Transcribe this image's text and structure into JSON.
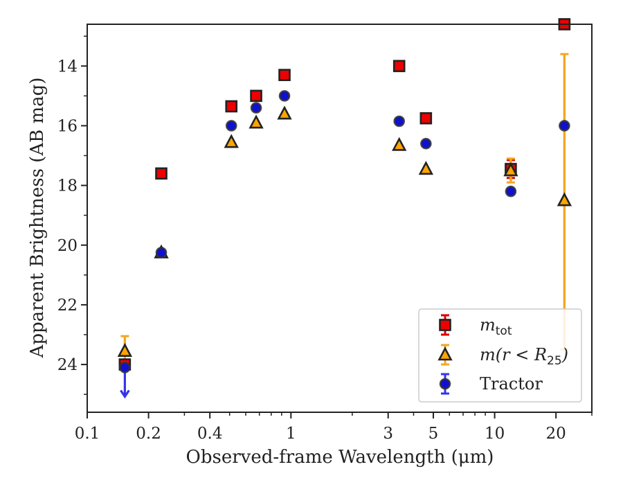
{
  "chart_data": {
    "type": "scatter",
    "title": "",
    "xlabel": "Observed-frame Wavelength (μm)",
    "ylabel": "Apparent Brightness (AB mag)",
    "xscale": "log",
    "xlim": [
      0.1,
      30
    ],
    "ylim": [
      25.6,
      12.6
    ],
    "y_inverted": true,
    "grid": false,
    "legend_placement": "lower-right",
    "x_ticks": [
      {
        "value": 0.1,
        "label": "0.1"
      },
      {
        "value": 0.2,
        "label": "0.2"
      },
      {
        "value": 0.4,
        "label": "0.4"
      },
      {
        "value": 1,
        "label": "1"
      },
      {
        "value": 3,
        "label": "3"
      },
      {
        "value": 5,
        "label": "5"
      },
      {
        "value": 10,
        "label": "10"
      },
      {
        "value": 20,
        "label": "20"
      }
    ],
    "y_ticks": [
      14,
      16,
      18,
      20,
      22,
      24
    ],
    "series": [
      {
        "name": "m_tot",
        "legend_base": "m",
        "legend_sub": "tot",
        "marker": "square",
        "color": "#ee0000",
        "errorbar_color": "#dd0000",
        "points": [
          {
            "x": 0.153,
            "y": 24.0
          },
          {
            "x": 0.231,
            "y": 17.6
          },
          {
            "x": 0.51,
            "y": 15.35
          },
          {
            "x": 0.675,
            "y": 15.0
          },
          {
            "x": 0.93,
            "y": 14.3
          },
          {
            "x": 3.4,
            "y": 14.0
          },
          {
            "x": 4.6,
            "y": 15.75
          },
          {
            "x": 12.0,
            "y": 17.45,
            "yerr": 0.3
          },
          {
            "x": 22.0,
            "y": 12.6
          }
        ]
      },
      {
        "name": "m(r < R25)",
        "legend_base": "m(r < R",
        "legend_sub": "25",
        "legend_tail": ")",
        "marker": "triangle",
        "color": "#ffa500",
        "errorbar_color": "#f5a623",
        "points": [
          {
            "x": 0.153,
            "y": 23.55,
            "yerr": 0.5
          },
          {
            "x": 0.231,
            "y": 20.25
          },
          {
            "x": 0.51,
            "y": 16.55
          },
          {
            "x": 0.675,
            "y": 15.9
          },
          {
            "x": 0.93,
            "y": 15.6
          },
          {
            "x": 3.4,
            "y": 16.65
          },
          {
            "x": 4.6,
            "y": 17.45
          },
          {
            "x": 12.0,
            "y": 17.5,
            "yerr": 0.4
          },
          {
            "x": 22.0,
            "y": 18.5,
            "yerr_low": 4.9,
            "yerr_high": 5.0
          }
        ]
      },
      {
        "name": "Tractor",
        "marker": "circle",
        "color": "#1010d0",
        "errorbar_color": "#3333ee",
        "points": [
          {
            "x": 0.153,
            "y": 24.1,
            "upper_limit": true
          },
          {
            "x": 0.231,
            "y": 20.25
          },
          {
            "x": 0.51,
            "y": 16.0
          },
          {
            "x": 0.675,
            "y": 15.4
          },
          {
            "x": 0.93,
            "y": 15.0
          },
          {
            "x": 3.4,
            "y": 15.85
          },
          {
            "x": 4.6,
            "y": 16.6
          },
          {
            "x": 12.0,
            "y": 18.2
          },
          {
            "x": 22.0,
            "y": 16.0
          }
        ]
      }
    ]
  }
}
